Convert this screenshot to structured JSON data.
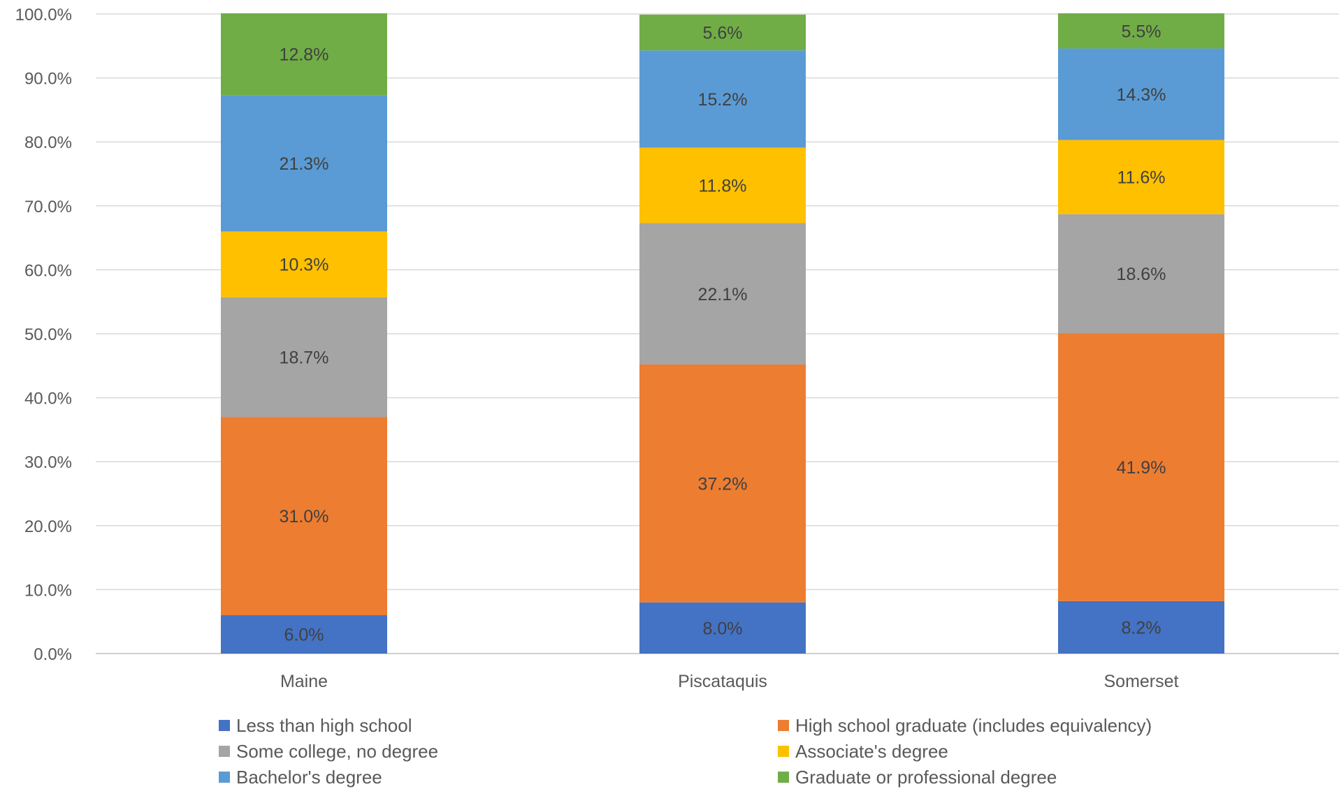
{
  "chart_data": {
    "type": "bar",
    "stacked": true,
    "title": "",
    "xlabel": "",
    "ylabel": "",
    "ylim": [
      0,
      100
    ],
    "yticks": [
      0,
      10,
      20,
      30,
      40,
      50,
      60,
      70,
      80,
      90,
      100
    ],
    "ytick_labels": [
      "0.0%",
      "10.0%",
      "20.0%",
      "30.0%",
      "40.0%",
      "50.0%",
      "60.0%",
      "70.0%",
      "80.0%",
      "90.0%",
      "100.0%"
    ],
    "grid": true,
    "legend_position": "bottom",
    "categories": [
      "Maine",
      "Piscataquis",
      "Somerset"
    ],
    "series": [
      {
        "name": "Less than high school",
        "color": "#4472C4",
        "values": [
          6.0,
          8.0,
          8.2
        ],
        "labels": [
          "6.0%",
          "8.0%",
          "8.2%"
        ]
      },
      {
        "name": "High school graduate (includes equivalency)",
        "color": "#ED7D31",
        "values": [
          31.0,
          37.2,
          41.9
        ],
        "labels": [
          "31.0%",
          "37.2%",
          "41.9%"
        ]
      },
      {
        "name": "Some college, no degree",
        "color": "#A5A5A5",
        "values": [
          18.7,
          22.1,
          18.6
        ],
        "labels": [
          "18.7%",
          "22.1%",
          "18.6%"
        ]
      },
      {
        "name": "Associate's degree",
        "color": "#FFC000",
        "values": [
          10.3,
          11.8,
          11.6
        ],
        "labels": [
          "10.3%",
          "11.8%",
          "11.6%"
        ]
      },
      {
        "name": "Bachelor's degree",
        "color": "#5B9BD5",
        "values": [
          21.3,
          15.2,
          14.3
        ],
        "labels": [
          "21.3%",
          "15.2%",
          "14.3%"
        ]
      },
      {
        "name": "Graduate or professional degree",
        "color": "#70AD47",
        "values": [
          12.8,
          5.6,
          5.5
        ],
        "labels": [
          "12.8%",
          "5.6%",
          "5.5%"
        ]
      }
    ]
  }
}
